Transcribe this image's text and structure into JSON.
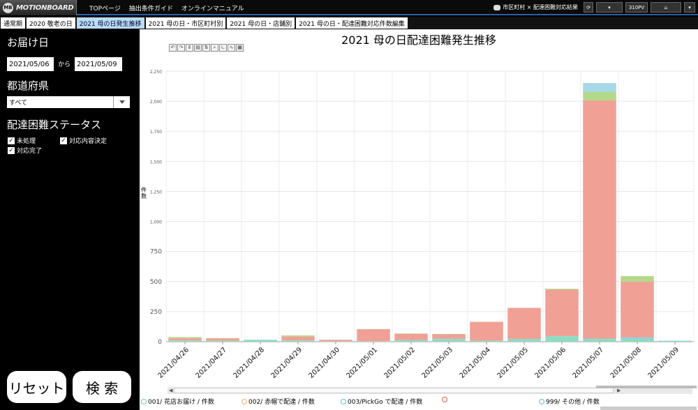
{
  "app": {
    "logo_text": "MOTIONBOARD",
    "logo_mark": "MB"
  },
  "topnav": [
    "TOPページ",
    "抽出条件ガイド",
    "オンラインマニュアル"
  ],
  "topright": {
    "breadcrumb": "市区町村 × 配達困難対応結果",
    "pv": "310PV"
  },
  "tabs": [
    {
      "label": "通常期"
    },
    {
      "label": "2020 敬老の日"
    },
    {
      "label": "2021 母の日発生推移",
      "active": true
    },
    {
      "label": "2021 母の日・市区町村別"
    },
    {
      "label": "2021 母の日・店舗別"
    },
    {
      "label": "2021 母の日・配達困難対応件数編集"
    }
  ],
  "sidebar": {
    "delivery_date_label": "お届け日",
    "date_from": "2021/05/06",
    "date_sep": "から",
    "date_to": "2021/05/09",
    "prefecture_label": "都道府県",
    "prefecture_value": "すべて",
    "status_label": "配達困難ステータス",
    "checkboxes": [
      {
        "label": "未処理",
        "checked": true
      },
      {
        "label": "対応内容決定",
        "checked": true
      },
      {
        "label": "対応完了",
        "checked": true
      }
    ],
    "reset_label": "リセット",
    "search_label": "検 索"
  },
  "chart_data": {
    "type": "bar",
    "stacked": true,
    "title": "2021 母の日配達困難発生推移",
    "ylabel": "件数",
    "ylim": [
      0,
      2250
    ],
    "yticks": [
      0,
      250,
      500,
      750,
      1000,
      1250,
      1500,
      1750,
      2000,
      2250
    ],
    "ytick_labels": [
      "0",
      "250",
      "500",
      "750",
      "1,000",
      "1,250",
      "1,500",
      "1,750",
      "2,000",
      "2,250"
    ],
    "categories": [
      "2021/04/26",
      "2021/04/27",
      "2021/04/28",
      "2021/04/29",
      "2021/04/30",
      "2021/05/01",
      "2021/05/02",
      "2021/05/03",
      "2021/05/04",
      "2021/05/05",
      "2021/05/06",
      "2021/05/07",
      "2021/05/08",
      "2021/05/09"
    ],
    "series": [
      {
        "name": "001/ 花店お届け / 件数",
        "color": "#8fdcc0",
        "values": [
          8,
          8,
          14,
          8,
          4,
          4,
          12,
          20,
          8,
          20,
          45,
          20,
          20,
          6
        ]
      },
      {
        "name": "002/ 赤帽で配達 / 件数",
        "color": "#f5c690",
        "values": [
          0,
          0,
          0,
          0,
          0,
          0,
          0,
          0,
          0,
          0,
          0,
          0,
          0,
          0
        ]
      },
      {
        "name": "003/PickGo で配達 / 件数",
        "color": "#8dd3e0",
        "values": [
          2,
          0,
          2,
          2,
          0,
          0,
          2,
          4,
          0,
          3,
          2,
          6,
          15,
          2
        ]
      },
      {
        "name": "",
        "color": "#f0a095",
        "values": [
          18,
          20,
          0,
          32,
          12,
          100,
          52,
          38,
          157,
          258,
          385,
          1980,
          465,
          0
        ]
      },
      {
        "name": "999/ その他 / 件数",
        "color": "#b3d98a",
        "values": [
          10,
          2,
          0,
          10,
          0,
          0,
          2,
          2,
          0,
          0,
          8,
          70,
          45,
          0
        ]
      },
      {
        "name": "",
        "color": "#a6d8e6",
        "values": [
          0,
          0,
          0,
          0,
          0,
          0,
          0,
          0,
          0,
          0,
          0,
          75,
          0,
          0
        ]
      }
    ],
    "legend_position": "bottom",
    "grid": true,
    "legend_colors": [
      "#6ccba7",
      "#f0b06a",
      "#5bc0cf",
      "#e05a4a",
      "#5bc0cf"
    ]
  }
}
